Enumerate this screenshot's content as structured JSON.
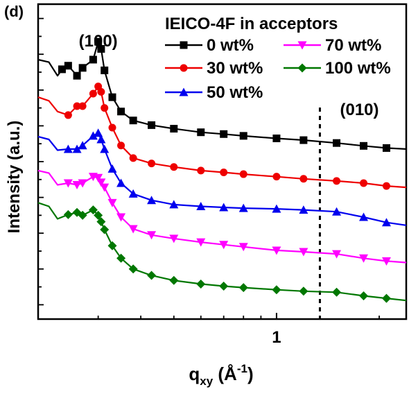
{
  "chart_data": {
    "type": "line",
    "panel_label": "(d)",
    "legend_title": "IEICO-4F in acceptors",
    "xlabel_main": "q",
    "xlabel_sub": "xy",
    "xlabel_unit_open": " (Å",
    "xlabel_unit_sup": "-1",
    "xlabel_unit_close": ")",
    "ylabel": "Intensity (a.u.)",
    "x_scale": "log",
    "xlim": [
      0.2,
      2.4
    ],
    "x_tick_label_values": [
      1
    ],
    "x_tick_labels": [
      "1"
    ],
    "y_ticks_labeled": false,
    "annotations": [
      {
        "text": "(100)",
        "x": 0.3
      },
      {
        "text": "(010)",
        "x": 1.75
      }
    ],
    "reference_line_x": 1.34,
    "legend_placement": "top-right",
    "series": [
      {
        "name": "0 wt%",
        "color": "#000000",
        "marker": "square",
        "points": [
          [
            0.2,
            8.05
          ],
          [
            0.215,
            7.98
          ],
          [
            0.228,
            7.6
          ],
          [
            0.235,
            7.78
          ],
          [
            0.245,
            7.88
          ],
          [
            0.26,
            7.6
          ],
          [
            0.27,
            7.82
          ],
          [
            0.29,
            8.05
          ],
          [
            0.3,
            8.55
          ],
          [
            0.306,
            8.35
          ],
          [
            0.313,
            7.75
          ],
          [
            0.33,
            7.0
          ],
          [
            0.35,
            6.6
          ],
          [
            0.38,
            6.35
          ],
          [
            0.43,
            6.22
          ],
          [
            0.5,
            6.12
          ],
          [
            0.6,
            6.02
          ],
          [
            0.7,
            5.97
          ],
          [
            0.8,
            5.92
          ],
          [
            1.0,
            5.85
          ],
          [
            1.2,
            5.8
          ],
          [
            1.5,
            5.72
          ],
          [
            1.8,
            5.64
          ],
          [
            2.1,
            5.58
          ],
          [
            2.4,
            5.55
          ]
        ]
      },
      {
        "name": "30 wt%",
        "color": "#ee0000",
        "marker": "circle",
        "points": [
          [
            0.2,
            7.0
          ],
          [
            0.215,
            6.9
          ],
          [
            0.228,
            6.6
          ],
          [
            0.245,
            6.5
          ],
          [
            0.26,
            6.75
          ],
          [
            0.27,
            6.75
          ],
          [
            0.29,
            7.1
          ],
          [
            0.3,
            7.3
          ],
          [
            0.306,
            7.15
          ],
          [
            0.313,
            6.7
          ],
          [
            0.33,
            6.15
          ],
          [
            0.35,
            5.65
          ],
          [
            0.38,
            5.3
          ],
          [
            0.43,
            5.15
          ],
          [
            0.5,
            5.05
          ],
          [
            0.6,
            4.95
          ],
          [
            0.7,
            4.9
          ],
          [
            0.8,
            4.85
          ],
          [
            1.0,
            4.78
          ],
          [
            1.2,
            4.72
          ],
          [
            1.5,
            4.66
          ],
          [
            1.8,
            4.6
          ],
          [
            2.1,
            4.52
          ],
          [
            2.4,
            4.48
          ]
        ]
      },
      {
        "name": "50 wt%",
        "color": "#0000ee",
        "marker": "triangle-up",
        "points": [
          [
            0.2,
            5.9
          ],
          [
            0.215,
            5.82
          ],
          [
            0.228,
            5.52
          ],
          [
            0.245,
            5.55
          ],
          [
            0.26,
            5.55
          ],
          [
            0.27,
            5.65
          ],
          [
            0.29,
            5.92
          ],
          [
            0.3,
            6.0
          ],
          [
            0.306,
            5.82
          ],
          [
            0.313,
            5.55
          ],
          [
            0.33,
            5.0
          ],
          [
            0.35,
            4.6
          ],
          [
            0.38,
            4.3
          ],
          [
            0.43,
            4.12
          ],
          [
            0.5,
            4.0
          ],
          [
            0.6,
            3.95
          ],
          [
            0.7,
            3.92
          ],
          [
            0.8,
            3.9
          ],
          [
            1.0,
            3.88
          ],
          [
            1.2,
            3.85
          ],
          [
            1.5,
            3.8
          ],
          [
            1.8,
            3.65
          ],
          [
            2.1,
            3.5
          ],
          [
            2.4,
            3.42
          ]
        ]
      },
      {
        "name": "70 wt%",
        "color": "#ff00ff",
        "marker": "triangle-down",
        "points": [
          [
            0.2,
            4.95
          ],
          [
            0.215,
            4.88
          ],
          [
            0.228,
            4.55
          ],
          [
            0.245,
            4.6
          ],
          [
            0.26,
            4.55
          ],
          [
            0.27,
            4.6
          ],
          [
            0.29,
            4.78
          ],
          [
            0.3,
            4.75
          ],
          [
            0.306,
            4.62
          ],
          [
            0.313,
            4.48
          ],
          [
            0.33,
            4.05
          ],
          [
            0.35,
            3.65
          ],
          [
            0.38,
            3.32
          ],
          [
            0.43,
            3.15
          ],
          [
            0.5,
            3.05
          ],
          [
            0.6,
            2.95
          ],
          [
            0.7,
            2.88
          ],
          [
            0.8,
            2.82
          ],
          [
            1.0,
            2.72
          ],
          [
            1.2,
            2.68
          ],
          [
            1.5,
            2.62
          ],
          [
            1.8,
            2.5
          ],
          [
            2.1,
            2.42
          ],
          [
            2.4,
            2.38
          ]
        ]
      },
      {
        "name": "100 wt%",
        "color": "#007700",
        "marker": "diamond",
        "points": [
          [
            0.2,
            4.05
          ],
          [
            0.215,
            3.95
          ],
          [
            0.228,
            3.6
          ],
          [
            0.245,
            3.72
          ],
          [
            0.26,
            3.78
          ],
          [
            0.27,
            3.7
          ],
          [
            0.29,
            3.85
          ],
          [
            0.3,
            3.7
          ],
          [
            0.306,
            3.52
          ],
          [
            0.313,
            3.3
          ],
          [
            0.33,
            2.85
          ],
          [
            0.35,
            2.5
          ],
          [
            0.38,
            2.2
          ],
          [
            0.43,
            2.02
          ],
          [
            0.5,
            1.88
          ],
          [
            0.6,
            1.78
          ],
          [
            0.7,
            1.72
          ],
          [
            0.8,
            1.68
          ],
          [
            1.0,
            1.62
          ],
          [
            1.2,
            1.58
          ],
          [
            1.5,
            1.55
          ],
          [
            1.8,
            1.45
          ],
          [
            2.1,
            1.38
          ],
          [
            2.4,
            1.32
          ]
        ]
      }
    ]
  }
}
